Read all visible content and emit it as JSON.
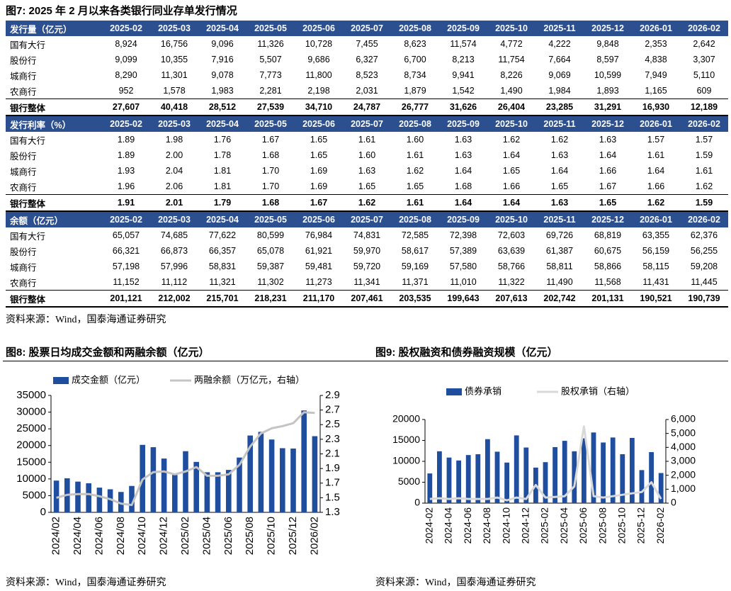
{
  "table": {
    "title": "图7:  2025 年 2 月以来各类银行同业存单发行情况",
    "columns": [
      "2025-02",
      "2025-03",
      "2025-04",
      "2025-05",
      "2025-06",
      "2025-07",
      "2025-08",
      "2025-09",
      "2025-10",
      "2025-11",
      "2025-12",
      "2026-01",
      "2026-02"
    ],
    "sections": [
      {
        "header": "发行量（亿元）",
        "rows": [
          {
            "label": "国有大行",
            "values": [
              "8,924",
              "16,756",
              "9,096",
              "11,326",
              "10,728",
              "7,455",
              "8,623",
              "11,574",
              "4,772",
              "4,222",
              "9,848",
              "2,353",
              "2,642"
            ]
          },
          {
            "label": "股份行",
            "values": [
              "9,099",
              "10,355",
              "7,916",
              "5,507",
              "9,686",
              "6,327",
              "6,700",
              "8,213",
              "11,754",
              "7,664",
              "8,597",
              "4,838",
              "3,307"
            ]
          },
          {
            "label": "城商行",
            "values": [
              "8,290",
              "11,301",
              "9,078",
              "7,773",
              "11,800",
              "8,523",
              "8,734",
              "9,941",
              "8,226",
              "9,069",
              "10,599",
              "7,949",
              "5,110"
            ]
          },
          {
            "label": "农商行",
            "values": [
              "952",
              "1,578",
              "1,983",
              "2,281",
              "2,198",
              "2,031",
              "1,879",
              "1,542",
              "1,490",
              "1,984",
              "1,893",
              "1,165",
              "609"
            ]
          }
        ],
        "total": {
          "label": "银行整体",
          "values": [
            "27,607",
            "40,418",
            "28,512",
            "27,539",
            "34,710",
            "24,787",
            "26,777",
            "31,626",
            "26,404",
            "23,285",
            "31,291",
            "16,930",
            "12,189"
          ]
        }
      },
      {
        "header": "发行利率（%）",
        "rows": [
          {
            "label": "国有大行",
            "values": [
              "1.89",
              "1.98",
              "1.76",
              "1.67",
              "1.65",
              "1.61",
              "1.60",
              "1.63",
              "1.62",
              "1.62",
              "1.63",
              "1.57",
              "1.57"
            ]
          },
          {
            "label": "股份行",
            "values": [
              "1.89",
              "2.00",
              "1.78",
              "1.68",
              "1.65",
              "1.60",
              "1.61",
              "1.63",
              "1.64",
              "1.63",
              "1.64",
              "1.61",
              "1.59"
            ]
          },
          {
            "label": "城商行",
            "values": [
              "1.93",
              "2.04",
              "1.81",
              "1.70",
              "1.69",
              "1.63",
              "1.62",
              "1.64",
              "1.65",
              "1.64",
              "1.66",
              "1.64",
              "1.61"
            ]
          },
          {
            "label": "农商行",
            "values": [
              "1.96",
              "2.06",
              "1.81",
              "1.70",
              "1.69",
              "1.65",
              "1.65",
              "1.68",
              "1.66",
              "1.65",
              "1.67",
              "1.66",
              "1.62"
            ]
          }
        ],
        "total": {
          "label": "银行整体",
          "values": [
            "1.91",
            "2.01",
            "1.79",
            "1.68",
            "1.67",
            "1.62",
            "1.61",
            "1.64",
            "1.64",
            "1.63",
            "1.65",
            "1.62",
            "1.59"
          ]
        }
      },
      {
        "header": "余额（亿元）",
        "rows": [
          {
            "label": "国有大行",
            "values": [
              "65,057",
              "74,685",
              "77,622",
              "80,599",
              "76,984",
              "74,831",
              "72,585",
              "72,398",
              "72,603",
              "69,726",
              "68,819",
              "63,355",
              "62,376"
            ]
          },
          {
            "label": "股份行",
            "values": [
              "66,321",
              "66,873",
              "66,357",
              "65,078",
              "61,921",
              "59,970",
              "58,617",
              "57,389",
              "63,639",
              "61,387",
              "60,675",
              "56,159",
              "56,255"
            ]
          },
          {
            "label": "城商行",
            "values": [
              "57,198",
              "57,996",
              "58,831",
              "59,387",
              "59,481",
              "59,720",
              "59,169",
              "57,580",
              "58,766",
              "58,811",
              "58,866",
              "58,115",
              "59,208"
            ]
          },
          {
            "label": "农商行",
            "values": [
              "11,152",
              "11,112",
              "11,321",
              "11,302",
              "11,273",
              "11,341",
              "11,371",
              "11,010",
              "11,322",
              "11,490",
              "11,568",
              "11,431",
              "11,445"
            ]
          }
        ],
        "total": {
          "label": "银行整体",
          "values": [
            "201,121",
            "212,002",
            "215,701",
            "218,231",
            "211,170",
            "207,461",
            "203,535",
            "199,643",
            "207,613",
            "202,742",
            "201,131",
            "190,521",
            "190,739"
          ]
        }
      }
    ],
    "source": "资料来源：Wind，国泰海通证券研究"
  },
  "chart_data": [
    {
      "type": "combo",
      "title": "图8:  股票日均成交金额和两融余额（亿元）",
      "source": "资料来源：Wind，国泰海通证券研究",
      "categories": [
        "2024/02",
        null,
        "2024/04",
        null,
        "2024/06",
        null,
        "2024/08",
        null,
        "2024/10",
        null,
        "2024/12",
        null,
        "2025/02",
        null,
        "2025/04",
        null,
        "2025/06",
        null,
        "2025/08",
        null,
        "2025/10",
        null,
        "2025/12",
        null,
        "2026/02"
      ],
      "series": [
        {
          "name": "成交金额（亿元）",
          "type": "bar",
          "color": "#1F4E9E",
          "values": [
            9500,
            10200,
            9200,
            8700,
            7400,
            6900,
            6100,
            7900,
            20200,
            19500,
            16100,
            11200,
            18300,
            15100,
            12000,
            12000,
            12700,
            16400,
            23000,
            24100,
            21800,
            19200,
            19100,
            30500,
            22800
          ]
        },
        {
          "name": "两融余额（万亿元，右轴）",
          "type": "line",
          "axis": "y2",
          "color": "#C4C4C4",
          "values": [
            1.5,
            1.54,
            1.55,
            1.55,
            1.52,
            1.48,
            1.42,
            1.4,
            1.75,
            1.85,
            1.86,
            1.82,
            1.86,
            1.92,
            1.8,
            1.8,
            1.82,
            1.95,
            2.2,
            2.38,
            2.45,
            2.48,
            2.52,
            2.67,
            2.66
          ]
        }
      ],
      "ylim": [
        0,
        35000
      ],
      "yticks": [
        0,
        5000,
        10000,
        15000,
        20000,
        25000,
        30000,
        35000
      ],
      "y2lim": [
        1.3,
        2.9
      ],
      "y2ticks": [
        1.3,
        1.5,
        1.7,
        1.9,
        2.1,
        2.3,
        2.5,
        2.7,
        2.9
      ]
    },
    {
      "type": "combo",
      "title": "图9:  股权融资和债券融资规模（亿元）",
      "source": "资料来源：Wind，国泰海通证券研究",
      "categories": [
        "2024-02",
        null,
        "2024-04",
        null,
        "2024-06",
        null,
        "2024-08",
        null,
        "2024-10",
        null,
        "2024-12",
        null,
        "2025-02",
        null,
        "2025-04",
        null,
        "2025-06",
        null,
        "2025-08",
        null,
        "2025-10",
        null,
        "2025-12",
        null,
        "2026-02"
      ],
      "series": [
        {
          "name": "债券承销",
          "type": "bar",
          "color": "#1F4E9E",
          "values": [
            7100,
            12400,
            10900,
            10200,
            11500,
            11700,
            15300,
            12300,
            9700,
            16200,
            13300,
            8500,
            9800,
            13400,
            14900,
            12400,
            15500,
            16900,
            14500,
            15700,
            11700,
            15600,
            7900,
            12200,
            7200
          ]
        },
        {
          "name": "股权承销（右轴）",
          "type": "line",
          "axis": "y2",
          "color": "#D9D9D9",
          "values": [
            300,
            350,
            300,
            350,
            300,
            300,
            300,
            400,
            200,
            400,
            300,
            1300,
            400,
            450,
            500,
            1200,
            5500,
            500,
            400,
            500,
            600,
            700,
            800,
            1500,
            300
          ]
        }
      ],
      "ylim": [
        0,
        20000
      ],
      "yticks": [
        0,
        5000,
        10000,
        15000,
        20000
      ],
      "y2lim": [
        0,
        6000
      ],
      "y2ticks": [
        0,
        {
          "value": 1000,
          "label": "1,000"
        },
        {
          "value": 2000,
          "label": "2,000"
        },
        {
          "value": 3000,
          "label": "3,000"
        },
        {
          "value": 4000,
          "label": "4,000"
        },
        {
          "value": 5000,
          "label": "5,000"
        },
        {
          "value": 6000,
          "label": "6,000"
        }
      ]
    }
  ]
}
